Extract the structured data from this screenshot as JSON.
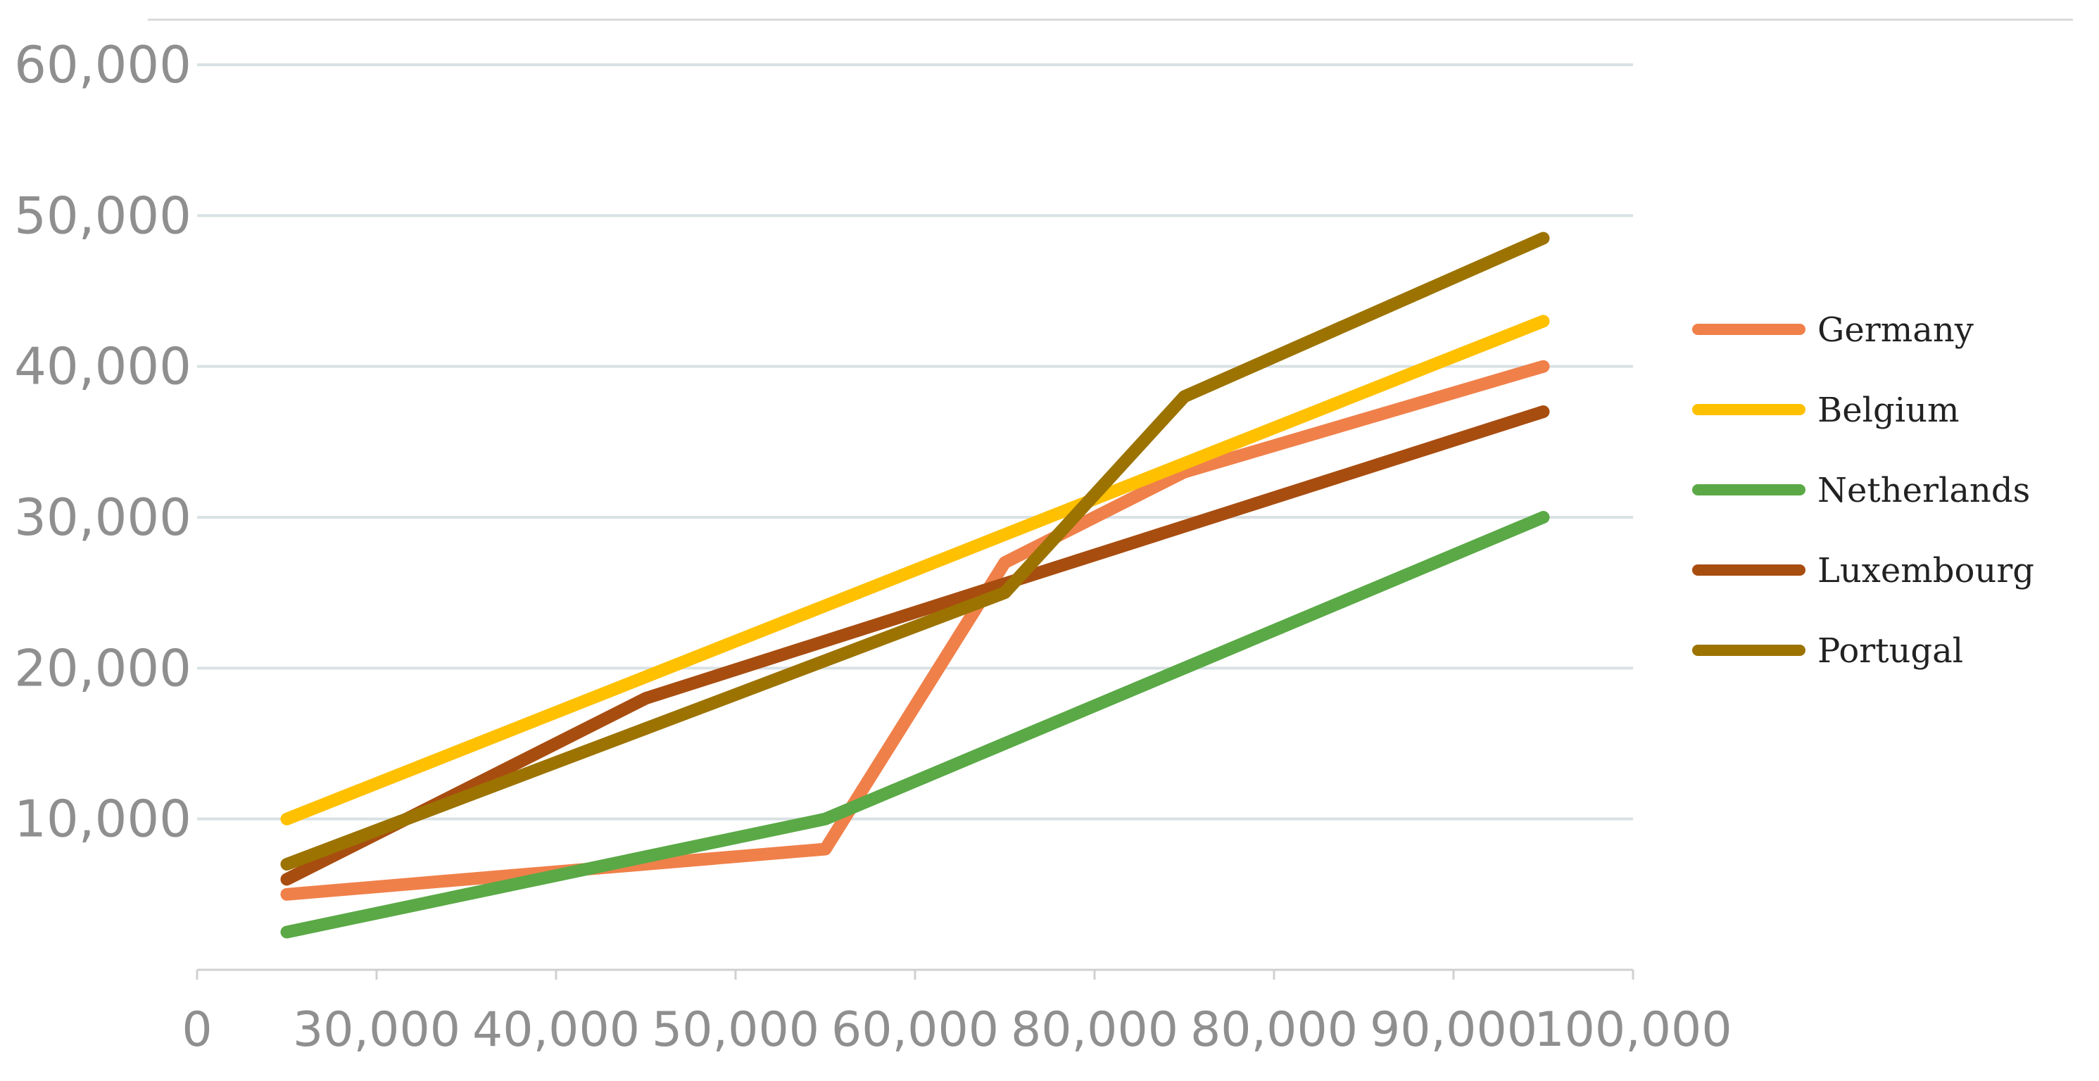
{
  "chart_data": {
    "type": "line",
    "title": "",
    "xlabel": "",
    "ylabel": "",
    "ylim": [
      0,
      60000
    ],
    "y_ticks": [
      "10,000",
      "20,000",
      "30,000",
      "40,000",
      "50,000",
      "60,000"
    ],
    "x_ticks": [
      "0",
      "30,000",
      "40,000",
      "50,000",
      "60,000",
      "80,000",
      "80,000",
      "90,000",
      "100,000"
    ],
    "grid": true,
    "legend_position": "right",
    "series": [
      {
        "name": "Germany",
        "color": "#F0804A",
        "points": [
          {
            "x": 0.5,
            "y": 5000
          },
          {
            "x": 3.5,
            "y": 8000
          },
          {
            "x": 4.5,
            "y": 27000
          },
          {
            "x": 5.5,
            "y": 33000
          },
          {
            "x": 7.5,
            "y": 40000
          }
        ]
      },
      {
        "name": "Belgium",
        "color": "#FFC000",
        "points": [
          {
            "x": 0.5,
            "y": 10000
          },
          {
            "x": 7.5,
            "y": 43000
          }
        ]
      },
      {
        "name": "Netherlands",
        "color": "#5AA946",
        "points": [
          {
            "x": 0.5,
            "y": 2500
          },
          {
            "x": 3.5,
            "y": 10000
          },
          {
            "x": 5.5,
            "y": 20000
          },
          {
            "x": 7.5,
            "y": 30000
          }
        ]
      },
      {
        "name": "Luxembourg",
        "color": "#A84D10",
        "points": [
          {
            "x": 0.5,
            "y": 6000
          },
          {
            "x": 2.5,
            "y": 18000
          },
          {
            "x": 7.5,
            "y": 37000
          }
        ]
      },
      {
        "name": "Portugal",
        "color": "#9C7300",
        "points": [
          {
            "x": 0.5,
            "y": 7000
          },
          {
            "x": 4.5,
            "y": 25000
          },
          {
            "x": 5.5,
            "y": 38000
          },
          {
            "x": 7.5,
            "y": 48500
          }
        ]
      }
    ]
  }
}
